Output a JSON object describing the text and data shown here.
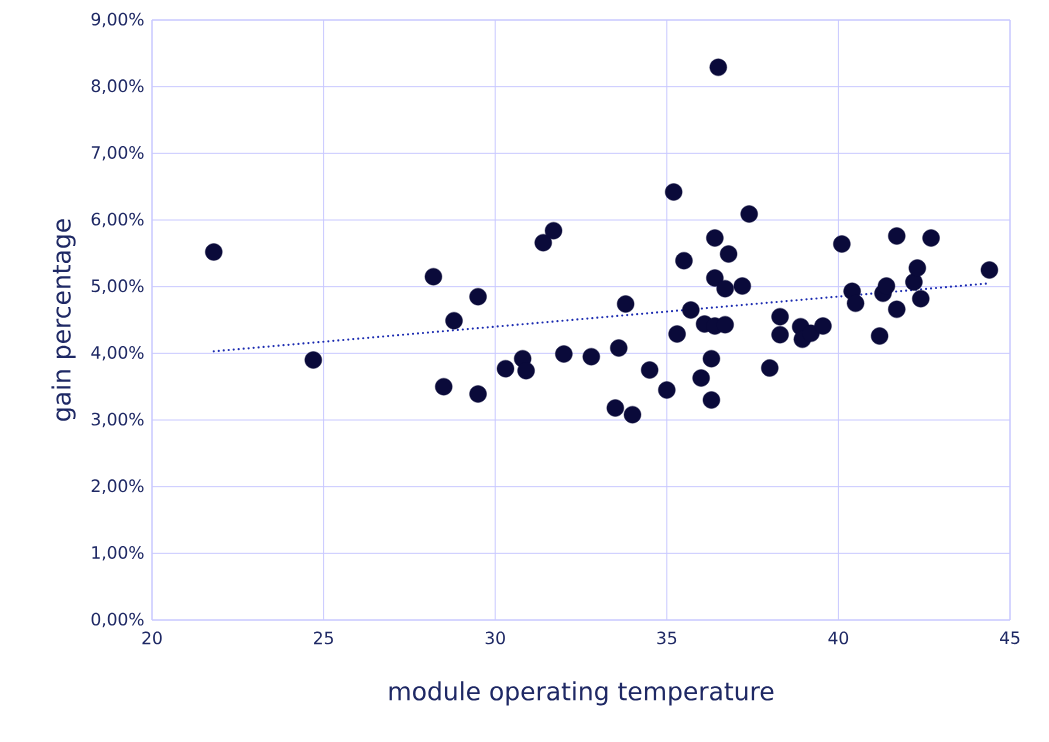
{
  "chart_data": {
    "type": "scatter",
    "xlabel": "module operating temperature",
    "ylabel": "gain percentage",
    "xlim": [
      20,
      45
    ],
    "xticks": [
      20,
      25,
      30,
      35,
      40,
      45
    ],
    "ylim": [
      0,
      9
    ],
    "yticks": [
      {
        "value": 0,
        "label": "0,00%"
      },
      {
        "value": 1,
        "label": "1,00%"
      },
      {
        "value": 2,
        "label": "2,00%"
      },
      {
        "value": 3,
        "label": "3,00%"
      },
      {
        "value": 4,
        "label": "4,00%"
      },
      {
        "value": 5,
        "label": "5,00%"
      },
      {
        "value": 6,
        "label": "6,00%"
      },
      {
        "value": 7,
        "label": "7,00%"
      },
      {
        "value": 8,
        "label": "8,00%"
      },
      {
        "value": 9,
        "label": "9,00%"
      }
    ],
    "grid": true,
    "series": [
      {
        "color": "#0a0a3a",
        "marker": "circle",
        "x": [
          21.8,
          24.7,
          28.2,
          28.5,
          28.8,
          29.5,
          29.5,
          30.3,
          30.8,
          30.9,
          31.4,
          31.7,
          32.0,
          32.8,
          33.5,
          33.6,
          33.8,
          34.0,
          34.5,
          35.0,
          35.2,
          35.3,
          35.5,
          35.7,
          36.0,
          36.1,
          36.3,
          36.3,
          36.4,
          36.4,
          36.4,
          36.5,
          36.7,
          36.7,
          36.8,
          37.2,
          37.4,
          38.0,
          38.3,
          38.3,
          38.9,
          38.95,
          39.2,
          39.55,
          40.1,
          40.4,
          40.5,
          41.2,
          41.3,
          41.4,
          41.7,
          41.7,
          42.2,
          42.3,
          42.4,
          42.7,
          44.4
        ],
        "values": [
          5.52,
          3.9,
          5.15,
          3.5,
          4.49,
          4.85,
          3.39,
          3.77,
          3.92,
          3.74,
          5.66,
          5.84,
          3.99,
          3.95,
          3.18,
          4.08,
          4.74,
          3.08,
          3.75,
          3.45,
          6.42,
          4.29,
          5.39,
          4.65,
          3.63,
          4.44,
          3.3,
          3.92,
          5.13,
          4.41,
          5.73,
          8.29,
          4.97,
          4.43,
          5.49,
          5.01,
          6.09,
          3.78,
          4.55,
          4.28,
          4.4,
          4.21,
          4.3,
          4.41,
          5.64,
          4.93,
          4.75,
          4.26,
          4.9,
          5.01,
          4.66,
          5.76,
          5.07,
          5.28,
          4.82,
          5.73,
          5.25
        ]
      },
      {
        "type": "line",
        "color": "#1a2ab0",
        "line_style": "dotted",
        "marker": "none",
        "x": [
          21.8,
          44.4
        ],
        "values": [
          4.03,
          5.05
        ]
      }
    ]
  }
}
